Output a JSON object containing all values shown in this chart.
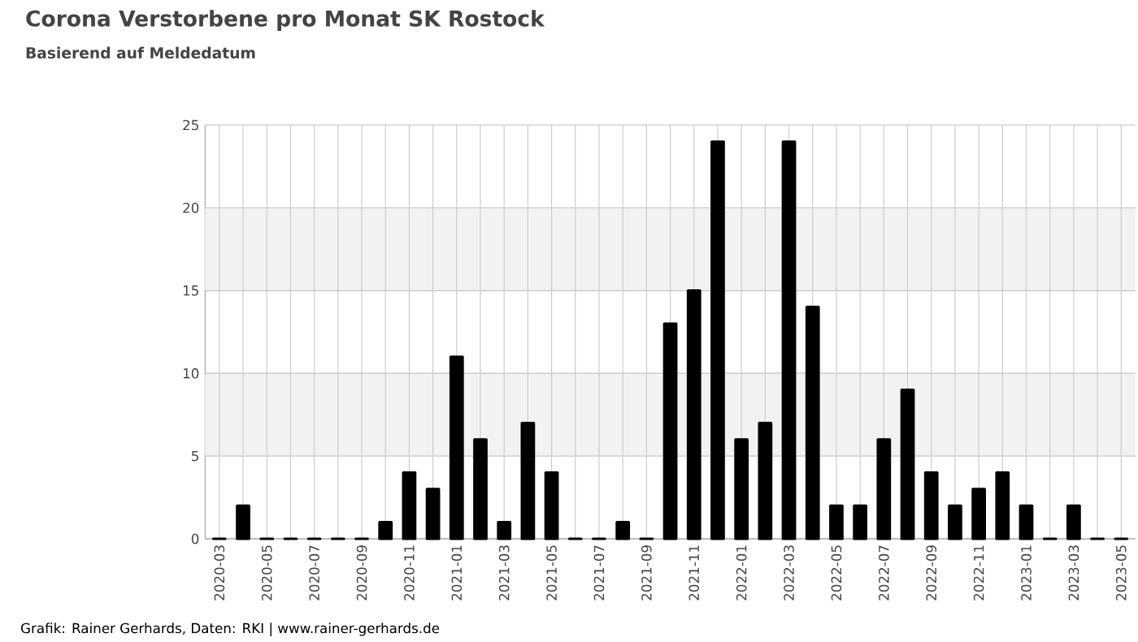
{
  "chart_data": {
    "type": "bar",
    "title": "Corona Verstorbene pro Monat SK Rostock",
    "subtitle": "Basierend auf Meldedatum",
    "categories": [
      "2020-03",
      null,
      "2020-05",
      null,
      "2020-07",
      null,
      "2020-09",
      null,
      "2020-11",
      null,
      "2021-01",
      null,
      "2021-03",
      null,
      "2021-05",
      null,
      "2021-07",
      null,
      "2021-09",
      null,
      "2021-11",
      null,
      "2022-01",
      null,
      "2022-03",
      null,
      "2022-05",
      null,
      "2022-07",
      null,
      "2022-09",
      null,
      "2022-11",
      null,
      "2023-01",
      null,
      "2023-03",
      null,
      "2023-05"
    ],
    "values": [
      0,
      2,
      0,
      0,
      0,
      0,
      0,
      1,
      4,
      3,
      11,
      6,
      1,
      7,
      4,
      0,
      0,
      1,
      0,
      13,
      15,
      24,
      6,
      7,
      24,
      14,
      2,
      2,
      6,
      9,
      4,
      2,
      3,
      4,
      2,
      0,
      2,
      0,
      0
    ],
    "color": "#000000",
    "ylim": [
      0,
      25
    ],
    "yticks": [
      0,
      5,
      10,
      15,
      20,
      25
    ],
    "grid": true,
    "bands": [
      {
        "axis": "y",
        "from": 5,
        "to": 10,
        "color": "#f2f2f2"
      },
      {
        "axis": "y",
        "from": 15,
        "to": 20,
        "color": "#f2f2f2"
      }
    ],
    "annotations": [
      "Grafik: Rainer Gerhards, Daten: RKI | www.rainer-gerhards.de"
    ]
  }
}
